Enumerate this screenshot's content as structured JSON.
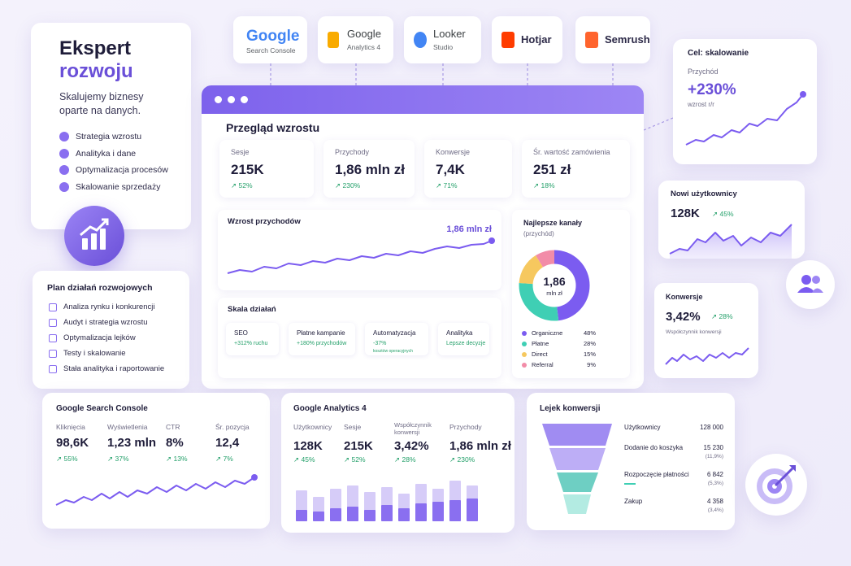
{
  "hero": {
    "title_line1": "Ekspert",
    "title_line2": "rozwoju",
    "subtitle": "Skalujemy biznesy oparte na danych.",
    "features": [
      "Strategia wzrostu",
      "Analityka i dane",
      "Optymalizacja procesów",
      "Skalowanie sprzedaży"
    ]
  },
  "tools": [
    {
      "name": "Google",
      "sub": "Search Console"
    },
    {
      "name": "Google",
      "sub": "Analytics 4"
    },
    {
      "name": "Looker",
      "sub": "Studio"
    },
    {
      "name": "Hotjar"
    },
    {
      "name": "Semrush"
    }
  ],
  "plan": {
    "title": "Plan działań rozwojowych",
    "items": [
      "Analiza rynku i konkurencji",
      "Audyt i strategia wzrostu",
      "Optymalizacja lejków",
      "Testy i skalowanie",
      "Stała analityka i raportowanie"
    ]
  },
  "overview": {
    "title": "Przegląd wzrostu",
    "kpis": [
      {
        "label": "Sesje",
        "value": "215K",
        "change": "↗ 52%"
      },
      {
        "label": "Przychody",
        "value": "1,86 mln zł",
        "change": "↗ 230%"
      },
      {
        "label": "Konwersje",
        "value": "7,4K",
        "change": "↗ 71%"
      },
      {
        "label": "Śr. wartość zamówienia",
        "value": "251 zł",
        "change": "↗ 18%"
      }
    ],
    "revenue": {
      "title": "Wzrost przychodów",
      "value": "1,86 mln zł"
    },
    "channels": {
      "title": "Najlepsze kanały",
      "subtitle": "(przychód)",
      "center_value": "1,86",
      "center_unit": "mln zł",
      "items": [
        {
          "name": "Organiczne",
          "value": 48,
          "value_label": "48%",
          "color": "#7b5cf0"
        },
        {
          "name": "Płatne",
          "value": 28,
          "value_label": "28%",
          "color": "#3fcfb4"
        },
        {
          "name": "Direct",
          "value": 15,
          "value_label": "15%",
          "color": "#f6c85f"
        },
        {
          "name": "Referral",
          "value": 9,
          "value_label": "9%",
          "color": "#f28ca8"
        }
      ]
    },
    "scale": {
      "title": "Skala działań",
      "items": [
        {
          "name": "SEO",
          "detail": "+312% ruchu"
        },
        {
          "name": "Płatne kampanie",
          "detail": "+180% przychodów"
        },
        {
          "name": "Automatyzacja",
          "detail": "-37%",
          "note": "kosztów operacyjnych"
        },
        {
          "name": "Analityka",
          "detail": "Lepsze decyzje"
        }
      ]
    }
  },
  "goal": {
    "title": "Cel: skalowanie",
    "label": "Przychód",
    "value": "+230%",
    "sub": "wzrost r/r"
  },
  "new_users": {
    "title": "Nowi użytkownicy",
    "value": "128K",
    "change": "↗ 45%"
  },
  "conversions": {
    "title": "Konwersje",
    "value": "3,42%",
    "change": "↗ 28%",
    "sub": "Współczynnik konwersji"
  },
  "gsc": {
    "title": "Google Search Console",
    "metrics": [
      {
        "label": "Kliknięcia",
        "value": "98,6K",
        "change": "↗ 55%"
      },
      {
        "label": "Wyświetlenia",
        "value": "1,23 mln",
        "change": "↗ 37%"
      },
      {
        "label": "CTR",
        "value": "8%",
        "change": "↗ 13%"
      },
      {
        "label": "Śr. pozycja",
        "value": "12,4",
        "change": "↗ 7%"
      }
    ]
  },
  "ga4": {
    "title": "Google Analytics 4",
    "metrics": [
      {
        "label": "Użytkownicy",
        "value": "128K",
        "change": "↗ 45%"
      },
      {
        "label": "Sesje",
        "value": "215K",
        "change": "↗ 52%"
      },
      {
        "label": "Współczynnik konwersji",
        "value": "3,42%",
        "change": "↗ 28%"
      },
      {
        "label": "Przychody",
        "value": "1,86 mln zł",
        "change": "↗ 230%"
      }
    ]
  },
  "funnel": {
    "title": "Lejek konwersji",
    "steps": [
      {
        "name": "Użytkownicy",
        "value": "128 000"
      },
      {
        "name": "Dodanie do koszyka",
        "value": "15 230",
        "share": "(11,9%)"
      },
      {
        "name": "Rozpoczęcie płatności",
        "value": "6 842",
        "share": "(5,3%)"
      },
      {
        "name": "Zakup",
        "value": "4 358",
        "share": "(3,4%)"
      }
    ]
  }
}
